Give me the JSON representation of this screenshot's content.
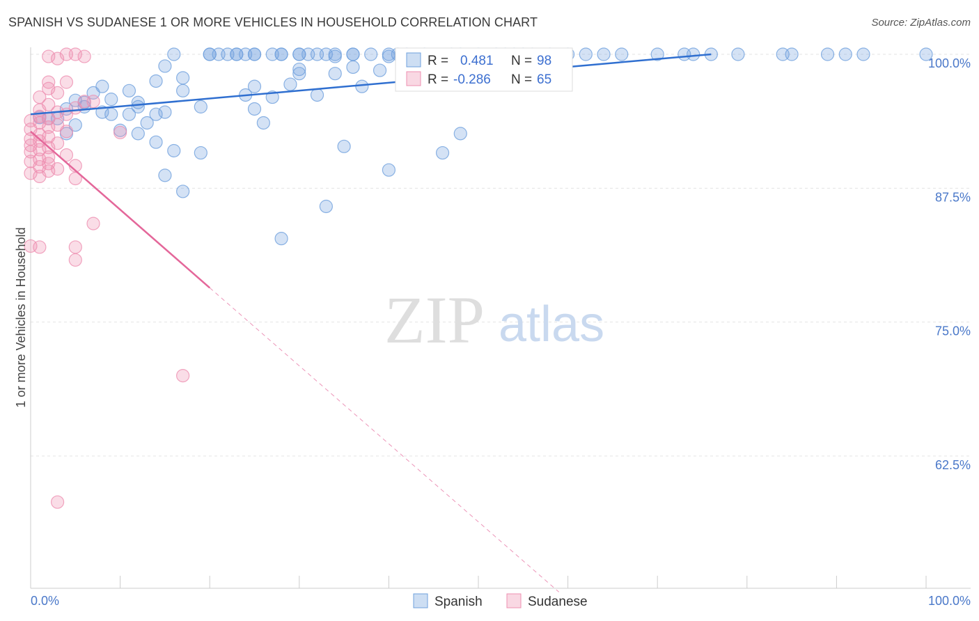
{
  "title": "SPANISH VS SUDANESE 1 OR MORE VEHICLES IN HOUSEHOLD CORRELATION CHART",
  "source": "Source: ZipAtlas.com",
  "watermark": {
    "zip": "ZIP",
    "atlas": "atlas"
  },
  "legend_box": {
    "rows": [
      {
        "r_label": "R =",
        "r_value": "0.481",
        "n_label": "N =",
        "n_value": "98",
        "color": "#6fa0dd"
      },
      {
        "r_label": "R =",
        "r_value": "-0.286",
        "n_label": "N =",
        "n_value": "65",
        "color": "#ee8fb0"
      }
    ]
  },
  "chart_data": {
    "type": "scatter",
    "title": "SPANISH VS SUDANESE 1 OR MORE VEHICLES IN HOUSEHOLD CORRELATION CHART",
    "xlabel": "",
    "ylabel": "1 or more Vehicles in Household",
    "xlim": [
      0,
      100
    ],
    "ylim": [
      51.5,
      101
    ],
    "x_tick_labels": [
      "0.0%",
      "100.0%"
    ],
    "y_tick_labels": [
      "100.0%",
      "87.5%",
      "75.0%",
      "62.5%"
    ],
    "y_tick_values": [
      100,
      87.5,
      75,
      62.5
    ],
    "grid": true,
    "legend": [
      "Spanish",
      "Sudanese"
    ],
    "legend_position": "bottom-center",
    "series": [
      {
        "name": "Spanish",
        "color": "#6fa0dd",
        "trend": {
          "x": [
            0,
            76
          ],
          "y": [
            94.4,
            100.0
          ],
          "style": "solid"
        },
        "points": [
          [
            16,
            100
          ],
          [
            20,
            100
          ],
          [
            20,
            100
          ],
          [
            21,
            100
          ],
          [
            22,
            100
          ],
          [
            23,
            100
          ],
          [
            23,
            100
          ],
          [
            24,
            100
          ],
          [
            25,
            100
          ],
          [
            25,
            100
          ],
          [
            27,
            100
          ],
          [
            28,
            100
          ],
          [
            28,
            100
          ],
          [
            30,
            100
          ],
          [
            30,
            100
          ],
          [
            31,
            100
          ],
          [
            32,
            100
          ],
          [
            33,
            100
          ],
          [
            34,
            100
          ],
          [
            36,
            100
          ],
          [
            36,
            100
          ],
          [
            38,
            100
          ],
          [
            40,
            100
          ],
          [
            41,
            100
          ],
          [
            42,
            100
          ],
          [
            44,
            100
          ],
          [
            47,
            100
          ],
          [
            48,
            100
          ],
          [
            50,
            100
          ],
          [
            52,
            100
          ],
          [
            53,
            100
          ],
          [
            54,
            100
          ],
          [
            55,
            100
          ],
          [
            56,
            100
          ],
          [
            58,
            100
          ],
          [
            60,
            100
          ],
          [
            62,
            100
          ],
          [
            64,
            100
          ],
          [
            66,
            100
          ],
          [
            70,
            100
          ],
          [
            73,
            100
          ],
          [
            74,
            100
          ],
          [
            76,
            100
          ],
          [
            79,
            100
          ],
          [
            84,
            100
          ],
          [
            85,
            100
          ],
          [
            89,
            100
          ],
          [
            91,
            100
          ],
          [
            93,
            100
          ],
          [
            100,
            100
          ],
          [
            34,
            99.8
          ],
          [
            40,
            99.8
          ],
          [
            43,
            99.8
          ],
          [
            44,
            99.6
          ],
          [
            44,
            99.8
          ],
          [
            59,
            99.8
          ],
          [
            15,
            98.9
          ],
          [
            30,
            98.6
          ],
          [
            30,
            98.2
          ],
          [
            34,
            98.2
          ],
          [
            36,
            98.8
          ],
          [
            39,
            98.5
          ],
          [
            17,
            97.8
          ],
          [
            14,
            97.5
          ],
          [
            29,
            97.2
          ],
          [
            25,
            97.0
          ],
          [
            37,
            97.0
          ],
          [
            8,
            97.0
          ],
          [
            11,
            96.6
          ],
          [
            17,
            96.6
          ],
          [
            7,
            96.4
          ],
          [
            24,
            96.2
          ],
          [
            32,
            96.2
          ],
          [
            27,
            96.0
          ],
          [
            9,
            95.8
          ],
          [
            5,
            95.7
          ],
          [
            6,
            95.5
          ],
          [
            12,
            95.5
          ],
          [
            12,
            95.1
          ],
          [
            6,
            95.1
          ],
          [
            19,
            95.1
          ],
          [
            4,
            94.9
          ],
          [
            8,
            94.6
          ],
          [
            15,
            94.6
          ],
          [
            25,
            94.9
          ],
          [
            9,
            94.4
          ],
          [
            11,
            94.4
          ],
          [
            14,
            94.4
          ],
          [
            1,
            94.1
          ],
          [
            2,
            94.0
          ],
          [
            3,
            94.0
          ],
          [
            13,
            93.6
          ],
          [
            26,
            93.6
          ],
          [
            5,
            93.4
          ],
          [
            10,
            92.9
          ],
          [
            4,
            92.6
          ],
          [
            12,
            92.6
          ],
          [
            48,
            92.6
          ],
          [
            14,
            91.8
          ],
          [
            35,
            91.4
          ],
          [
            16,
            91.0
          ],
          [
            19,
            90.8
          ],
          [
            46,
            90.8
          ],
          [
            40,
            89.2
          ],
          [
            15,
            88.7
          ],
          [
            17,
            87.2
          ],
          [
            33,
            85.8
          ],
          [
            28,
            82.8
          ]
        ]
      },
      {
        "name": "Sudanese",
        "color": "#ee8fb0",
        "trend": {
          "x": [
            0,
            20,
            59
          ],
          "y": [
            92.8,
            78.2,
            49.8
          ],
          "style": "solid-then-dashed"
        },
        "points": [
          [
            4,
            100
          ],
          [
            5,
            100
          ],
          [
            6,
            99.8
          ],
          [
            2,
            99.8
          ],
          [
            3,
            99.6
          ],
          [
            2,
            97.4
          ],
          [
            4,
            97.4
          ],
          [
            2,
            96.8
          ],
          [
            3,
            96.4
          ],
          [
            1,
            96.0
          ],
          [
            6,
            95.6
          ],
          [
            2,
            95.3
          ],
          [
            5,
            95.0
          ],
          [
            1,
            94.8
          ],
          [
            3,
            94.6
          ],
          [
            4,
            94.4
          ],
          [
            1,
            94.2
          ],
          [
            2,
            94.0
          ],
          [
            0,
            93.8
          ],
          [
            1,
            93.6
          ],
          [
            3,
            93.4
          ],
          [
            2,
            93.2
          ],
          [
            0,
            93.0
          ],
          [
            4,
            92.8
          ],
          [
            1,
            92.5
          ],
          [
            2,
            92.3
          ],
          [
            0,
            92.1
          ],
          [
            1,
            91.9
          ],
          [
            3,
            91.7
          ],
          [
            0,
            91.5
          ],
          [
            2,
            91.3
          ],
          [
            1,
            91.1
          ],
          [
            0,
            90.9
          ],
          [
            4,
            90.6
          ],
          [
            2,
            90.4
          ],
          [
            1,
            90.2
          ],
          [
            0,
            90.0
          ],
          [
            2,
            89.8
          ],
          [
            1,
            89.5
          ],
          [
            3,
            89.3
          ],
          [
            2,
            89.1
          ],
          [
            0,
            88.9
          ],
          [
            1,
            88.6
          ],
          [
            5,
            89.6
          ],
          [
            5,
            88.4
          ],
          [
            10,
            92.7
          ],
          [
            7,
            95.6
          ],
          [
            7,
            84.2
          ],
          [
            5,
            82.0
          ],
          [
            0,
            82.1
          ],
          [
            1,
            82.0
          ],
          [
            5,
            80.8
          ],
          [
            17,
            70.0
          ],
          [
            3,
            58.2
          ]
        ]
      }
    ]
  }
}
